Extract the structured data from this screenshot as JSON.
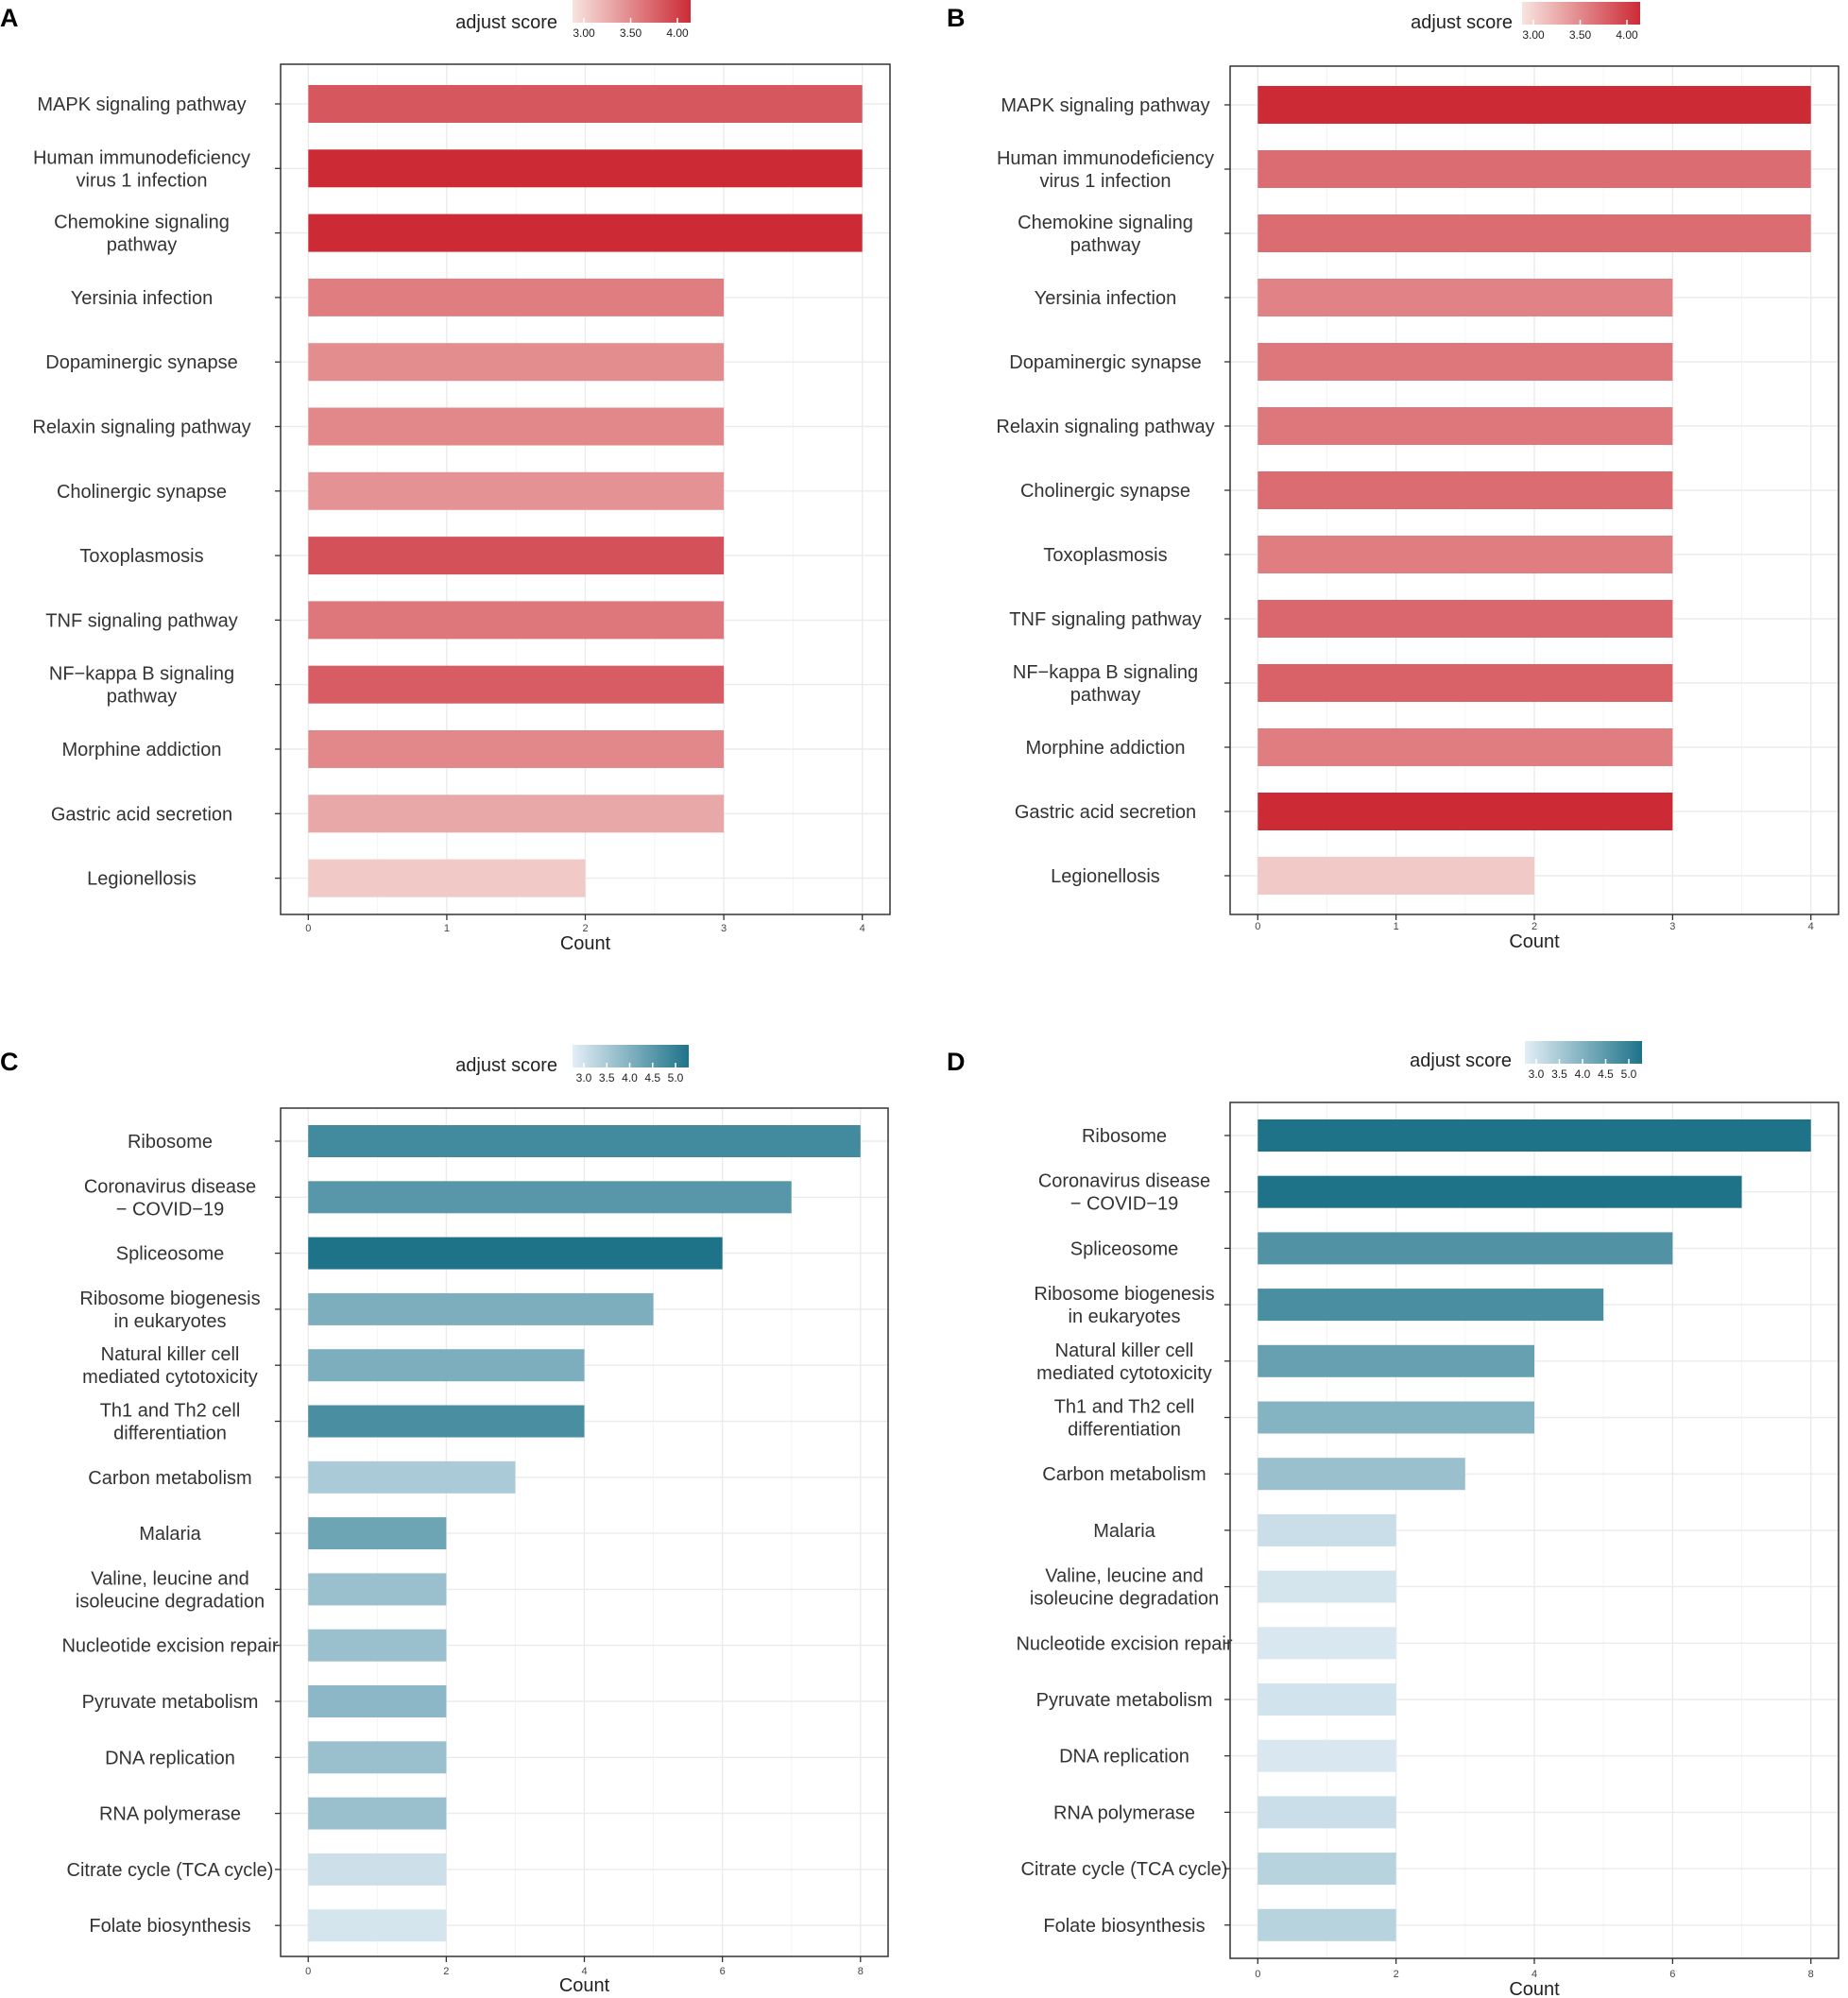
{
  "chart_data": [
    {
      "type": "bar",
      "orientation": "horizontal",
      "panel_label": "A",
      "legend_title": "adjust score",
      "legend_ticks": [
        "3.00",
        "3.50",
        "4.00"
      ],
      "legend_ticks_values": [
        3.0,
        3.5,
        4.0
      ],
      "color_range": [
        2.5,
        4.2
      ],
      "color_low": "#f7e4df",
      "color_high": "#cc2b36",
      "xlabel": "Count",
      "xticks": [
        0,
        1,
        2,
        3,
        4
      ],
      "xlim": [
        -0.2,
        4.2
      ],
      "categories": [
        [
          "MAPK signaling pathway"
        ],
        [
          "Human immunodeficiency",
          "virus 1 infection"
        ],
        [
          "Chemokine signaling",
          "pathway"
        ],
        [
          "Yersinia infection"
        ],
        [
          "Dopaminergic synapse"
        ],
        [
          "Relaxin signaling pathway"
        ],
        [
          "Cholinergic synapse"
        ],
        [
          "Toxoplasmosis"
        ],
        [
          "TNF signaling pathway"
        ],
        [
          "NF−kappa B signaling",
          "pathway"
        ],
        [
          "Morphine addiction"
        ],
        [
          "Gastric acid secretion"
        ],
        [
          "Legionellosis"
        ]
      ],
      "values": [
        4,
        4,
        4,
        3,
        3,
        3,
        3,
        3,
        3,
        3,
        3,
        3,
        2
      ],
      "scores": [
        3.8,
        4.2,
        4.2,
        3.45,
        3.3,
        3.35,
        3.25,
        3.85,
        3.5,
        3.75,
        3.35,
        3.05,
        2.75
      ]
    },
    {
      "type": "bar",
      "orientation": "horizontal",
      "panel_label": "B",
      "legend_title": "adjust score",
      "legend_ticks": [
        "3.00",
        "3.50",
        "4.00"
      ],
      "legend_ticks_values": [
        3.0,
        3.5,
        4.0
      ],
      "color_range": [
        2.5,
        4.2
      ],
      "color_low": "#f7e4df",
      "color_high": "#cc2b36",
      "xlabel": "Count",
      "xticks": [
        0,
        1,
        2,
        3,
        4
      ],
      "xlim": [
        -0.2,
        4.2
      ],
      "categories": [
        [
          "MAPK signaling pathway"
        ],
        [
          "Human immunodeficiency",
          "virus 1 infection"
        ],
        [
          "Chemokine signaling",
          "pathway"
        ],
        [
          "Yersinia infection"
        ],
        [
          "Dopaminergic synapse"
        ],
        [
          "Relaxin signaling pathway"
        ],
        [
          "Cholinergic synapse"
        ],
        [
          "Toxoplasmosis"
        ],
        [
          "TNF signaling pathway"
        ],
        [
          "NF−kappa B signaling",
          "pathway"
        ],
        [
          "Morphine addiction"
        ],
        [
          "Gastric acid secretion"
        ],
        [
          "Legionellosis"
        ]
      ],
      "values": [
        4,
        4,
        4,
        3,
        3,
        3,
        3,
        3,
        3,
        3,
        3,
        3,
        2
      ],
      "scores": [
        4.2,
        3.6,
        3.6,
        3.4,
        3.5,
        3.5,
        3.6,
        3.45,
        3.65,
        3.7,
        3.45,
        4.2,
        2.75
      ]
    },
    {
      "type": "bar",
      "orientation": "horizontal",
      "panel_label": "C",
      "legend_title": "adjust score",
      "legend_ticks": [
        "3.0",
        "3.5",
        "4.0",
        "4.5",
        "5.0"
      ],
      "legend_ticks_values": [
        3.0,
        3.5,
        4.0,
        4.5,
        5.0
      ],
      "color_range": [
        2.6,
        5.3
      ],
      "color_low": "#e3eef6",
      "color_high": "#1e7389",
      "xlabel": "Count",
      "xticks": [
        0,
        2,
        4,
        6,
        8
      ],
      "xlim": [
        -0.4,
        8.4
      ],
      "categories": [
        [
          "Ribosome"
        ],
        [
          "Coronavirus disease",
          "− COVID−19"
        ],
        [
          "Spliceosome"
        ],
        [
          "Ribosome biogenesis",
          "in eukaryotes"
        ],
        [
          "Natural killer cell",
          "mediated cytotoxicity"
        ],
        [
          "Th1 and Th2 cell",
          "differentiation"
        ],
        [
          "Carbon metabolism"
        ],
        [
          "Malaria"
        ],
        [
          "Valine, leucine and",
          "isoleucine degradation"
        ],
        [
          "Nucleotide excision repair"
        ],
        [
          "Pyruvate metabolism"
        ],
        [
          "DNA replication"
        ],
        [
          "RNA polymerase"
        ],
        [
          "Citrate cycle (TCA cycle)"
        ],
        [
          "Folate biosynthesis"
        ]
      ],
      "values": [
        8,
        7,
        6,
        5,
        4,
        4,
        3,
        2,
        2,
        2,
        2,
        2,
        2,
        2,
        2
      ],
      "scores": [
        4.8,
        4.5,
        5.3,
        4.0,
        4.0,
        4.7,
        3.4,
        4.2,
        3.6,
        3.6,
        3.8,
        3.6,
        3.6,
        2.9,
        2.8
      ]
    },
    {
      "type": "bar",
      "orientation": "horizontal",
      "panel_label": "D",
      "legend_title": "adjust score",
      "legend_ticks": [
        "3.0",
        "3.5",
        "4.0",
        "4.5",
        "5.0"
      ],
      "legend_ticks_values": [
        3.0,
        3.5,
        4.0,
        4.5,
        5.0
      ],
      "color_range": [
        2.6,
        5.3
      ],
      "color_low": "#e3eef6",
      "color_high": "#1e7389",
      "xlabel": "Count",
      "xticks": [
        0,
        2,
        4,
        6,
        8
      ],
      "xlim": [
        -0.4,
        8.4
      ],
      "categories": [
        [
          "Ribosome"
        ],
        [
          "Coronavirus disease",
          "− COVID−19"
        ],
        [
          "Spliceosome"
        ],
        [
          "Ribosome biogenesis",
          "in eukaryotes"
        ],
        [
          "Natural killer cell",
          "mediated cytotoxicity"
        ],
        [
          "Th1 and Th2 cell",
          "differentiation"
        ],
        [
          "Carbon metabolism"
        ],
        [
          "Malaria"
        ],
        [
          "Valine, leucine and",
          "isoleucine degradation"
        ],
        [
          "Nucleotide excision repair"
        ],
        [
          "Pyruvate metabolism"
        ],
        [
          "DNA replication"
        ],
        [
          "RNA polymerase"
        ],
        [
          "Citrate cycle (TCA cycle)"
        ],
        [
          "Folate biosynthesis"
        ]
      ],
      "values": [
        8,
        7,
        6,
        5,
        4,
        4,
        3,
        2,
        2,
        2,
        2,
        2,
        2,
        2,
        2
      ],
      "scores": [
        5.3,
        5.3,
        4.6,
        4.7,
        4.3,
        3.9,
        3.6,
        2.95,
        2.8,
        2.75,
        2.85,
        2.75,
        2.95,
        3.2,
        3.2
      ]
    }
  ]
}
